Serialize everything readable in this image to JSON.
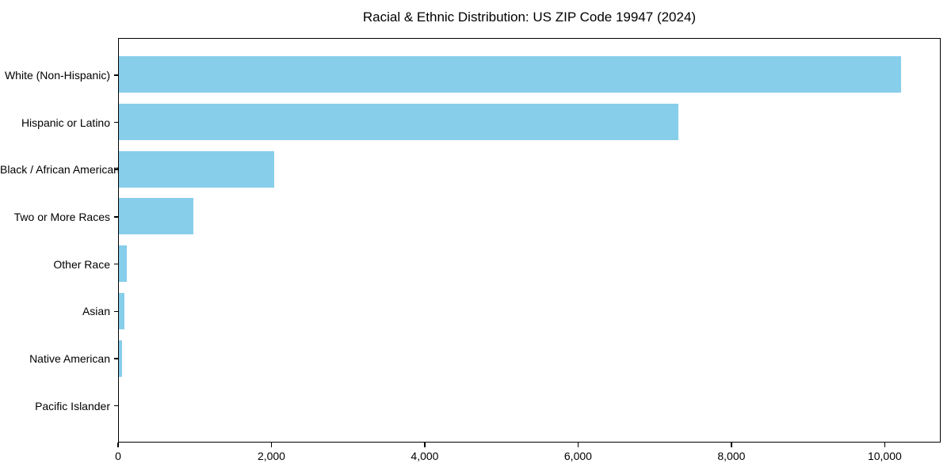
{
  "chart_data": {
    "type": "bar",
    "orientation": "horizontal",
    "title": "Racial & Ethnic Distribution: US ZIP Code 19947 (2024)",
    "categories": [
      "White (Non-Hispanic)",
      "Hispanic or Latino",
      "Black / African American",
      "Two or More Races",
      "Other Race",
      "Asian",
      "Native American",
      "Pacific Islander"
    ],
    "values": [
      10200,
      7300,
      2030,
      970,
      105,
      75,
      40,
      0
    ],
    "xlabel": "",
    "ylabel": "",
    "xlim": [
      0,
      10730
    ],
    "xticks": {
      "values": [
        0,
        2000,
        4000,
        6000,
        8000,
        10000
      ],
      "labels": [
        "0",
        "2,000",
        "4,000",
        "6,000",
        "8,000",
        "10,000"
      ]
    },
    "bar_color": "#87CEEB",
    "frame_color": "#000000",
    "background_color": "#FFFFFF",
    "grid": false,
    "legend": null
  }
}
